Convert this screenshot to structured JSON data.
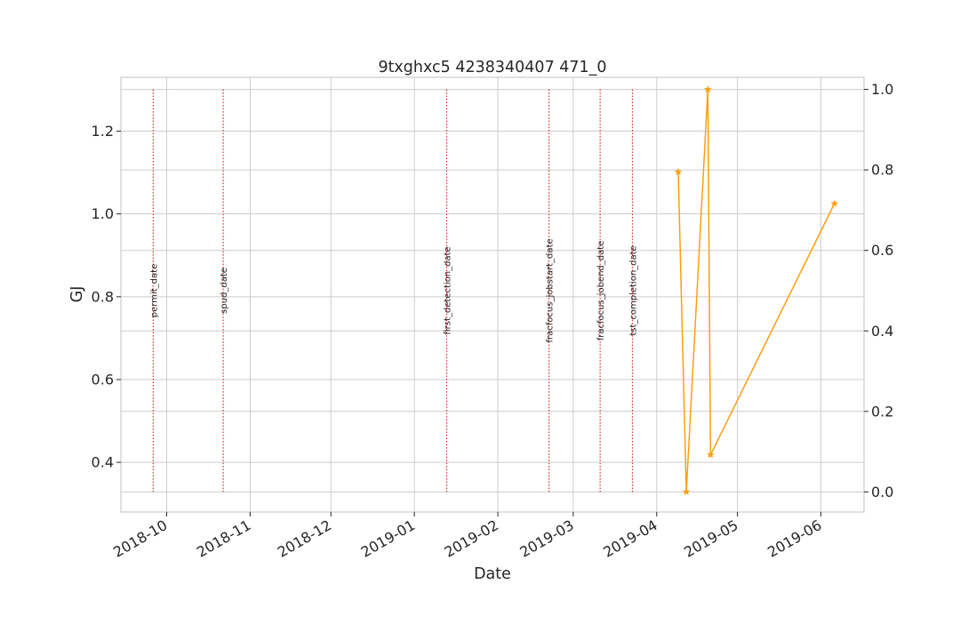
{
  "chart_data": {
    "type": "line",
    "title": "9txghxc5 4238340407 471_0",
    "xlabel": "Date",
    "ylabel": "GJ",
    "ylabel_color": "#1f77b4",
    "grid": true,
    "x_ticks": [
      "2018-10",
      "2018-11",
      "2018-12",
      "2019-01",
      "2019-02",
      "2019-03",
      "2019-04",
      "2019-05",
      "2019-06"
    ],
    "left_axis": {
      "ylim": [
        0.28,
        1.33
      ],
      "ticks": [
        "0.4",
        "0.6",
        "0.8",
        "1.0",
        "1.2"
      ]
    },
    "right_axis": {
      "ylim": [
        -0.05,
        1.03
      ],
      "ticks": [
        "0.0",
        "0.2",
        "0.4",
        "0.6",
        "0.8",
        "1.0"
      ]
    },
    "xlim": [
      "2018-09-14",
      "2019-06-17"
    ],
    "event_lines": [
      {
        "label": "permit_date",
        "date": "2018-09-26"
      },
      {
        "label": "spud_date",
        "date": "2018-10-22"
      },
      {
        "label": "first_detection_date",
        "date": "2019-01-13"
      },
      {
        "label": "fracfocus_jobstart_date",
        "date": "2019-02-20"
      },
      {
        "label": "fracfocus_jobend_date",
        "date": "2019-03-11"
      },
      {
        "label": "tst_completion_date",
        "date": "2019-03-23"
      }
    ],
    "event_line_color": "#d62728",
    "series": [
      {
        "axis": "right",
        "color": "#ff9f0f",
        "marker": "star",
        "points": [
          {
            "x": "2019-04-09",
            "y": 0.795
          },
          {
            "x": "2019-04-12",
            "y": 0.0
          },
          {
            "x": "2019-04-20",
            "y": 1.0
          },
          {
            "x": "2019-04-21",
            "y": 0.092
          },
          {
            "x": "2019-06-06",
            "y": 0.716
          }
        ]
      }
    ]
  }
}
